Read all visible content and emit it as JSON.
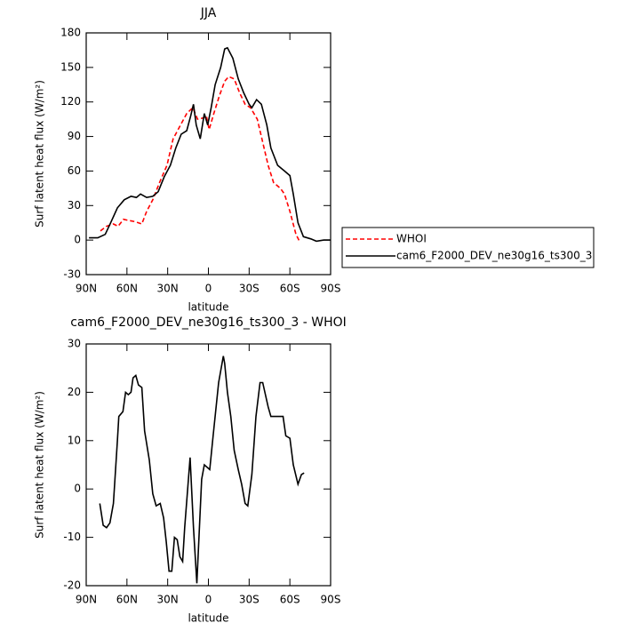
{
  "chart_data": [
    {
      "type": "line",
      "title": "JJA",
      "xlabel": "latitude",
      "ylabel": "Surf latent heat flux (W/m²)",
      "xlim": [
        90,
        -90
      ],
      "xticks": [
        {
          "value": 90,
          "label": "90N"
        },
        {
          "value": 60,
          "label": "60N"
        },
        {
          "value": 30,
          "label": "30N"
        },
        0,
        {
          "value": -30,
          "label": "30S"
        },
        {
          "value": -60,
          "label": "60S"
        },
        {
          "value": -90,
          "label": "90S"
        }
      ],
      "ylim": [
        -30,
        180
      ],
      "yticks": [
        -30,
        0,
        30,
        60,
        90,
        120,
        150,
        180
      ],
      "legend": "right",
      "series": [
        {
          "name": "WHOI",
          "color": "#ff0000",
          "dash": "dashed",
          "x": [
            79.5,
            75,
            70,
            66.5,
            62.5,
            58.5,
            54,
            49,
            45.5,
            41,
            36,
            30.5,
            26,
            20.5,
            16,
            11.5,
            8,
            4,
            1.5,
            -0.5,
            -4,
            -8,
            -12,
            -15,
            -19,
            -23,
            -27,
            -31,
            -36,
            -40,
            -44,
            -48,
            -53,
            -56,
            -60,
            -64.5,
            -67.5
          ],
          "values": [
            8,
            12,
            14,
            12,
            18,
            17,
            16,
            14,
            25,
            35,
            50,
            65,
            88,
            100,
            110,
            115,
            105,
            106,
            108,
            96,
            110,
            125,
            138,
            142,
            140,
            128,
            118,
            115,
            105,
            85,
            65,
            50,
            45,
            40,
            25,
            5,
            -2
          ]
        },
        {
          "name": "cam6_F2000_DEV_ne30g16_ts300_3",
          "color": "#000000",
          "dash": "solid",
          "x": [
            88,
            81.5,
            76,
            72,
            67,
            62,
            57,
            53,
            50,
            45.5,
            41,
            37,
            32.5,
            28,
            24,
            20,
            16,
            13,
            11,
            9,
            6,
            3,
            0.5,
            -2,
            -5,
            -9,
            -12,
            -14,
            -18,
            -22,
            -26,
            -30,
            -32,
            -35.5,
            -39,
            -43,
            -46,
            -51,
            -56,
            -60,
            -62.5,
            -66,
            -70,
            -75.5,
            -79.5,
            -85,
            -90
          ],
          "values": [
            2,
            2,
            5,
            15,
            28,
            35,
            38,
            37,
            40,
            37,
            38,
            42,
            55,
            65,
            80,
            92,
            95,
            108,
            118,
            100,
            88,
            110,
            100,
            115,
            135,
            150,
            166,
            167,
            158,
            140,
            128,
            118,
            115,
            122,
            118,
            100,
            80,
            65,
            60,
            56,
            40,
            15,
            3,
            1,
            -1,
            0,
            0
          ]
        }
      ]
    },
    {
      "type": "line",
      "title": "cam6_F2000_DEV_ne30g16_ts300_3 - WHOI",
      "xlabel": "latitude",
      "ylabel": "Surf latent heat flux (W/m²)",
      "xlim": [
        90,
        -90
      ],
      "xticks": [
        {
          "value": 90,
          "label": "90N"
        },
        {
          "value": 60,
          "label": "60N"
        },
        {
          "value": 30,
          "label": "30N"
        },
        0,
        {
          "value": -30,
          "label": "30S"
        },
        {
          "value": -60,
          "label": "60S"
        },
        {
          "value": -90,
          "label": "90S"
        }
      ],
      "ylim": [
        -20,
        30
      ],
      "yticks": [
        -20,
        -10,
        0,
        10,
        20,
        30
      ],
      "series": [
        {
          "color": "#000000",
          "dash": "solid",
          "x": [
            80,
            77.5,
            75,
            72.5,
            70,
            67,
            66,
            63,
            61,
            59,
            57,
            55.5,
            53.5,
            51.5,
            49,
            47,
            43.5,
            41,
            38.5,
            35.5,
            33,
            31,
            29,
            27,
            25,
            23,
            21,
            19,
            17.5,
            13.5,
            11,
            8.5,
            5,
            3,
            -1,
            -3.5,
            -7.5,
            -11,
            -12,
            -14,
            -16.5,
            -19,
            -22,
            -24.5,
            -27,
            -29,
            -32,
            -35,
            -38,
            -40,
            -44,
            -46,
            -51,
            -55,
            -57,
            -60,
            -62.5,
            -66,
            -68.5,
            -70.5
          ],
          "values": [
            -3,
            -7.5,
            -8,
            -7,
            -3,
            10,
            15,
            16,
            20,
            19.5,
            20,
            23,
            23.5,
            21.5,
            21,
            12,
            6,
            -1,
            -3.5,
            -3,
            -6,
            -11,
            -17,
            -17,
            -10,
            -10.5,
            -14,
            -15,
            -8,
            6.5,
            -8,
            -19.5,
            2,
            5,
            4,
            11,
            22,
            27.5,
            26,
            20,
            15,
            8,
            4,
            1,
            -3,
            -3.5,
            3,
            15,
            22,
            22,
            17,
            15,
            15,
            15,
            11,
            10.5,
            5,
            1,
            3,
            3.3
          ]
        }
      ]
    }
  ]
}
